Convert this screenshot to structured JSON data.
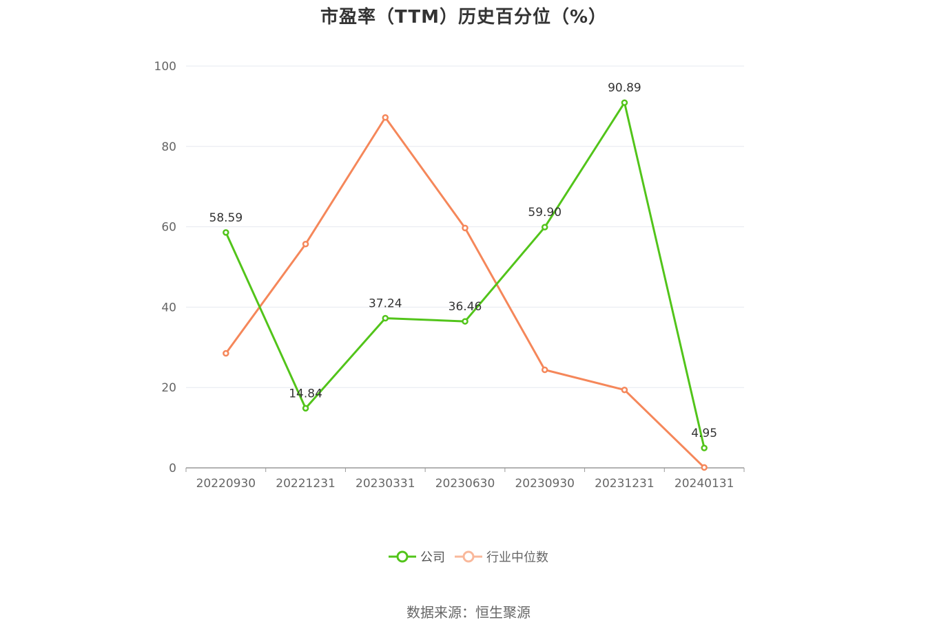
{
  "title": "市盈率（TTM）历史百分位（%）",
  "source": "数据来源：恒生聚源",
  "colors": {
    "company": "#52c41a",
    "industry": "#f5875a",
    "grid": "#e6e8ef",
    "axis": "#999999",
    "tick_text": "#666666",
    "label_text": "#333333"
  },
  "chart_data": {
    "type": "line",
    "title": "市盈率（TTM）历史百分位（%）",
    "xlabel": "",
    "ylabel": "",
    "ylim": [
      0,
      100
    ],
    "yticks": [
      0,
      20,
      40,
      60,
      80,
      100
    ],
    "categories": [
      "20220930",
      "20221231",
      "20230331",
      "20230630",
      "20230930",
      "20231231",
      "20240131"
    ],
    "grid": true,
    "legend_position": "bottom",
    "series": [
      {
        "name": "公司",
        "color": "#52c41a",
        "values": [
          58.59,
          14.84,
          37.24,
          36.46,
          59.9,
          90.89,
          4.95
        ],
        "labels": [
          "58.59",
          "14.84",
          "37.24",
          "36.46",
          "59.90",
          "90.89",
          "4.95"
        ]
      },
      {
        "name": "行业中位数",
        "color": "#f5875a",
        "values": [
          28.5,
          55.7,
          87.2,
          59.7,
          24.4,
          19.4,
          0.1
        ]
      }
    ]
  }
}
